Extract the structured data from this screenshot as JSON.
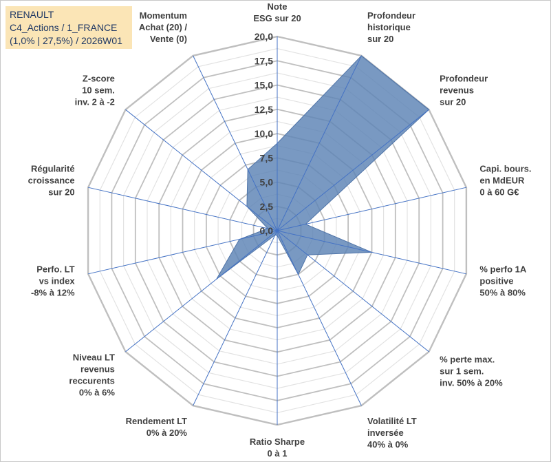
{
  "title_box": {
    "line1": "RENAULT",
    "line2": "C4_Actions / 1_FRANCE",
    "line3": "(1,0% | 27,5%) / 2026W01"
  },
  "chart_data": {
    "type": "radar",
    "title_lines": [
      "RENAULT",
      "C4_Actions / 1_FRANCE",
      "(1,0% | 27,5%) / 2026W01"
    ],
    "rmin": 0,
    "rmax": 20,
    "tick_values": [
      0,
      2.5,
      5,
      7.5,
      10,
      12.5,
      15,
      17.5,
      20
    ],
    "tick_labels": [
      "0,0",
      "2,5",
      "5,0",
      "7,5",
      "10,0",
      "12,5",
      "15,0",
      "17,5",
      "20,0"
    ],
    "grid_rings": 16,
    "axes": [
      {
        "label": [
          "Note",
          "ESG sur 20"
        ],
        "value": 9.0
      },
      {
        "label": [
          "Profondeur",
          "historique",
          "sur 20"
        ],
        "value": 20.0
      },
      {
        "label": [
          "Profondeur",
          "revenus",
          "sur 20"
        ],
        "value": 20.0
      },
      {
        "label": [
          "Capi. bours.",
          "en MdEUR",
          "0 à 60 G€"
        ],
        "value": 3.0
      },
      {
        "label": [
          "% perfo 1A",
          "positive",
          "50% à 80%"
        ],
        "value": 10.0
      },
      {
        "label": [
          "% perte max.",
          "sur 1 sem.",
          "inv. 50% à 20%"
        ],
        "value": 4.0
      },
      {
        "label": [
          "Volatilité LT",
          "inversée",
          "40% à 0%"
        ],
        "value": 5.0
      },
      {
        "label": [
          "Ratio Sharpe",
          "0 à 1"
        ],
        "value": 0.5
      },
      {
        "label": [
          "Rendement LT",
          "0% à 20%"
        ],
        "value": 0.5
      },
      {
        "label": [
          "Niveau LT",
          "revenus",
          "reccurents",
          "0% à 6%"
        ],
        "value": 8.0
      },
      {
        "label": [
          "Perfo. LT",
          "vs index",
          "-8% à 12%"
        ],
        "value": 4.0
      },
      {
        "label": [
          "Régularité",
          "croissance",
          "sur 20"
        ],
        "value": 1.0
      },
      {
        "label": [
          "Z-score",
          "10 sem.",
          "inv. 2 à -2"
        ],
        "value": 4.0
      },
      {
        "label": [
          "Momentum",
          "Achat (20) /",
          "Vente (0)"
        ],
        "value": 7.0
      }
    ],
    "series": [
      {
        "name": "RENAULT",
        "color": "#5b82b4",
        "opacity": 0.82
      }
    ],
    "grid_color": "#bfbfbf",
    "axis_color": "#4472c4"
  }
}
